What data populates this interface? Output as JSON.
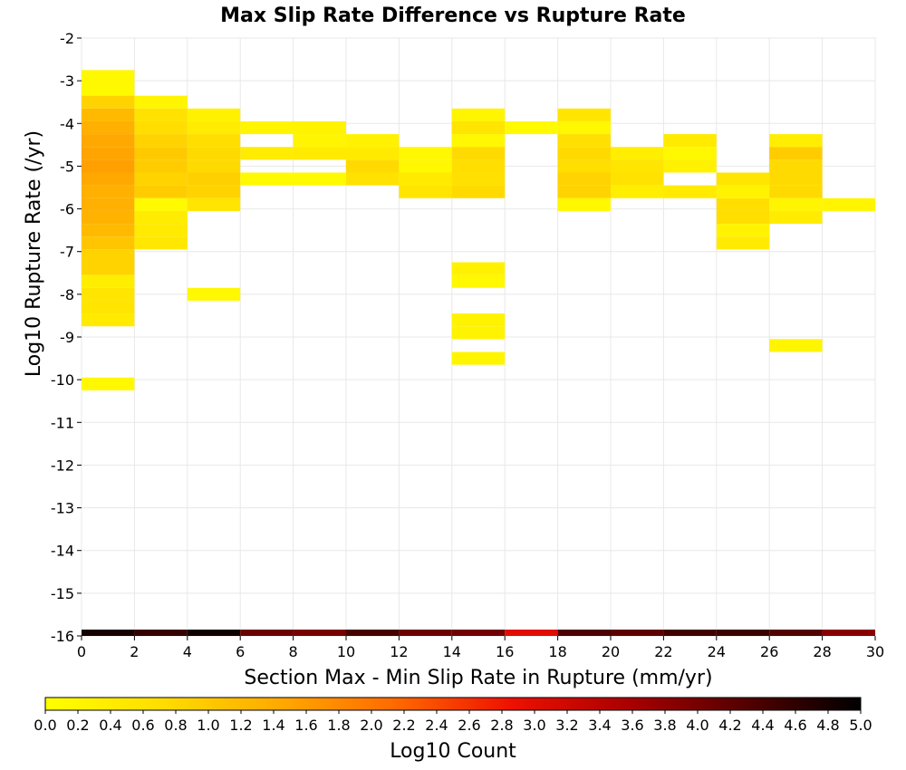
{
  "chart_data": {
    "type": "heatmap",
    "title": "Max Slip Rate Difference vs Rupture Rate",
    "xlabel": "Section Max - Min Slip Rate in Rupture (mm/yr)",
    "ylabel": "Log10 Rupture Rate (/yr)",
    "xlim": [
      0,
      30
    ],
    "ylim": [
      -16,
      -2
    ],
    "x_ticks": [
      "0",
      "2",
      "4",
      "6",
      "8",
      "10",
      "12",
      "14",
      "16",
      "18",
      "20",
      "22",
      "24",
      "26",
      "28",
      "30"
    ],
    "y_ticks": [
      "-2",
      "-3",
      "-4",
      "-5",
      "-6",
      "-7",
      "-8",
      "-9",
      "-10",
      "-11",
      "-12",
      "-13",
      "-14",
      "-15",
      "-16"
    ],
    "grid": true,
    "colorbar": {
      "label": "Log10 Count",
      "range": [
        0,
        5
      ],
      "ticks": [
        "0.0",
        "0.2",
        "0.4",
        "0.6",
        "0.8",
        "1.0",
        "1.2",
        "1.4",
        "1.6",
        "1.8",
        "2.0",
        "2.2",
        "2.4",
        "2.6",
        "2.8",
        "3.0",
        "3.2",
        "3.4",
        "3.6",
        "3.8",
        "4.0",
        "4.2",
        "4.4",
        "4.6",
        "4.8",
        "5.0"
      ],
      "colors": [
        "#ffff00",
        "#ffdd00",
        "#ffaa00",
        "#ff6a00",
        "#ee1100",
        "#aa0000",
        "#550000",
        "#000000"
      ]
    },
    "x_bin_width": 2,
    "y_bin_height": 0.3,
    "cells": [
      {
        "x": 0,
        "y": -2.9,
        "v": 0.15
      },
      {
        "x": 0,
        "y": -3.2,
        "v": 0.12
      },
      {
        "x": 0,
        "y": -3.5,
        "v": 0.85
      },
      {
        "x": 0,
        "y": -3.8,
        "v": 1.2
      },
      {
        "x": 0,
        "y": -4.1,
        "v": 1.35
      },
      {
        "x": 0,
        "y": -4.4,
        "v": 1.45
      },
      {
        "x": 0,
        "y": -4.7,
        "v": 1.5
      },
      {
        "x": 0,
        "y": -5.0,
        "v": 1.55
      },
      {
        "x": 0,
        "y": -5.3,
        "v": 1.45
      },
      {
        "x": 0,
        "y": -5.6,
        "v": 1.35
      },
      {
        "x": 0,
        "y": -5.9,
        "v": 1.35
      },
      {
        "x": 0,
        "y": -6.2,
        "v": 1.3
      },
      {
        "x": 0,
        "y": -6.5,
        "v": 1.2
      },
      {
        "x": 0,
        "y": -6.8,
        "v": 1.05
      },
      {
        "x": 0,
        "y": -7.1,
        "v": 0.85
      },
      {
        "x": 0,
        "y": -7.4,
        "v": 0.85
      },
      {
        "x": 0,
        "y": -7.7,
        "v": 0.35
      },
      {
        "x": 0,
        "y": -8.0,
        "v": 0.55
      },
      {
        "x": 0,
        "y": -8.3,
        "v": 0.55
      },
      {
        "x": 0,
        "y": -8.6,
        "v": 0.45
      },
      {
        "x": 0,
        "y": -10.1,
        "v": 0.15
      },
      {
        "x": 2,
        "y": -3.5,
        "v": 0.2
      },
      {
        "x": 2,
        "y": -3.8,
        "v": 0.6
      },
      {
        "x": 2,
        "y": -4.1,
        "v": 0.7
      },
      {
        "x": 2,
        "y": -4.4,
        "v": 0.85
      },
      {
        "x": 2,
        "y": -4.7,
        "v": 1.0
      },
      {
        "x": 2,
        "y": -5.0,
        "v": 0.95
      },
      {
        "x": 2,
        "y": -5.3,
        "v": 0.85
      },
      {
        "x": 2,
        "y": -5.6,
        "v": 0.95
      },
      {
        "x": 2,
        "y": -5.9,
        "v": 0.1
      },
      {
        "x": 2,
        "y": -6.2,
        "v": 0.4
      },
      {
        "x": 2,
        "y": -6.5,
        "v": 0.45
      },
      {
        "x": 2,
        "y": -6.8,
        "v": 0.5
      },
      {
        "x": 4,
        "y": -3.8,
        "v": 0.3
      },
      {
        "x": 4,
        "y": -4.1,
        "v": 0.4
      },
      {
        "x": 4,
        "y": -4.4,
        "v": 0.7
      },
      {
        "x": 4,
        "y": -4.7,
        "v": 0.75
      },
      {
        "x": 4,
        "y": -5.0,
        "v": 0.75
      },
      {
        "x": 4,
        "y": -5.3,
        "v": 0.9
      },
      {
        "x": 4,
        "y": -5.6,
        "v": 0.85
      },
      {
        "x": 4,
        "y": -5.9,
        "v": 0.55
      },
      {
        "x": 4,
        "y": -8.0,
        "v": 0.15
      },
      {
        "x": 6,
        "y": -4.1,
        "v": 0.2
      },
      {
        "x": 6,
        "y": -4.7,
        "v": 0.4
      },
      {
        "x": 6,
        "y": -5.3,
        "v": 0.1
      },
      {
        "x": 8,
        "y": -4.1,
        "v": 0.25
      },
      {
        "x": 8,
        "y": -4.4,
        "v": 0.2
      },
      {
        "x": 8,
        "y": -4.7,
        "v": 0.45
      },
      {
        "x": 8,
        "y": -5.3,
        "v": 0.1
      },
      {
        "x": 10,
        "y": -4.4,
        "v": 0.3
      },
      {
        "x": 10,
        "y": -4.7,
        "v": 0.45
      },
      {
        "x": 10,
        "y": -5.0,
        "v": 0.75
      },
      {
        "x": 10,
        "y": -5.3,
        "v": 0.6
      },
      {
        "x": 12,
        "y": -4.7,
        "v": 0.15
      },
      {
        "x": 12,
        "y": -5.0,
        "v": 0.15
      },
      {
        "x": 12,
        "y": -5.3,
        "v": 0.45
      },
      {
        "x": 12,
        "y": -5.6,
        "v": 0.55
      },
      {
        "x": 14,
        "y": -3.8,
        "v": 0.2
      },
      {
        "x": 14,
        "y": -4.1,
        "v": 0.55
      },
      {
        "x": 14,
        "y": -4.4,
        "v": 0.15
      },
      {
        "x": 14,
        "y": -4.7,
        "v": 0.75
      },
      {
        "x": 14,
        "y": -5.0,
        "v": 0.7
      },
      {
        "x": 14,
        "y": -5.3,
        "v": 0.65
      },
      {
        "x": 14,
        "y": -5.6,
        "v": 0.75
      },
      {
        "x": 14,
        "y": -7.4,
        "v": 0.3
      },
      {
        "x": 14,
        "y": -7.7,
        "v": 0.15
      },
      {
        "x": 14,
        "y": -8.6,
        "v": 0.25
      },
      {
        "x": 14,
        "y": -8.9,
        "v": 0.25
      },
      {
        "x": 14,
        "y": -9.5,
        "v": 0.2
      },
      {
        "x": 16,
        "y": -4.1,
        "v": 0.1
      },
      {
        "x": 18,
        "y": -3.8,
        "v": 0.55
      },
      {
        "x": 18,
        "y": -4.1,
        "v": 0.15
      },
      {
        "x": 18,
        "y": -4.4,
        "v": 0.65
      },
      {
        "x": 18,
        "y": -4.7,
        "v": 0.75
      },
      {
        "x": 18,
        "y": -5.0,
        "v": 0.7
      },
      {
        "x": 18,
        "y": -5.3,
        "v": 0.85
      },
      {
        "x": 18,
        "y": -5.6,
        "v": 0.85
      },
      {
        "x": 18,
        "y": -5.9,
        "v": 0.15
      },
      {
        "x": 20,
        "y": -4.7,
        "v": 0.35
      },
      {
        "x": 20,
        "y": -5.0,
        "v": 0.55
      },
      {
        "x": 20,
        "y": -5.3,
        "v": 0.6
      },
      {
        "x": 20,
        "y": -5.6,
        "v": 0.35
      },
      {
        "x": 22,
        "y": -4.4,
        "v": 0.45
      },
      {
        "x": 22,
        "y": -4.7,
        "v": 0.15
      },
      {
        "x": 22,
        "y": -5.0,
        "v": 0.3
      },
      {
        "x": 22,
        "y": -5.6,
        "v": 0.45
      },
      {
        "x": 24,
        "y": -5.3,
        "v": 0.55
      },
      {
        "x": 24,
        "y": -5.6,
        "v": 0.25
      },
      {
        "x": 24,
        "y": -5.9,
        "v": 0.7
      },
      {
        "x": 24,
        "y": -6.2,
        "v": 0.7
      },
      {
        "x": 24,
        "y": -6.5,
        "v": 0.25
      },
      {
        "x": 24,
        "y": -6.8,
        "v": 0.45
      },
      {
        "x": 26,
        "y": -4.4,
        "v": 0.35
      },
      {
        "x": 26,
        "y": -4.7,
        "v": 0.95
      },
      {
        "x": 26,
        "y": -5.0,
        "v": 0.75
      },
      {
        "x": 26,
        "y": -5.3,
        "v": 0.75
      },
      {
        "x": 26,
        "y": -5.6,
        "v": 0.75
      },
      {
        "x": 26,
        "y": -5.9,
        "v": 0.2
      },
      {
        "x": 26,
        "y": -6.2,
        "v": 0.4
      },
      {
        "x": 26,
        "y": -9.2,
        "v": 0.2
      },
      {
        "x": 28,
        "y": -5.9,
        "v": 0.2
      }
    ],
    "marginal_strip": [
      {
        "x": 0,
        "v": 4.8
      },
      {
        "x": 2,
        "v": 4.55
      },
      {
        "x": 4,
        "v": 4.85
      },
      {
        "x": 6,
        "v": 4.1
      },
      {
        "x": 8,
        "v": 4.0
      },
      {
        "x": 10,
        "v": 4.4
      },
      {
        "x": 12,
        "v": 4.1
      },
      {
        "x": 14,
        "v": 4.05
      },
      {
        "x": 16,
        "v": 3.0
      },
      {
        "x": 18,
        "v": 4.35
      },
      {
        "x": 20,
        "v": 4.2
      },
      {
        "x": 22,
        "v": 4.45
      },
      {
        "x": 24,
        "v": 4.5
      },
      {
        "x": 26,
        "v": 4.3
      },
      {
        "x": 28,
        "v": 3.85
      }
    ]
  }
}
